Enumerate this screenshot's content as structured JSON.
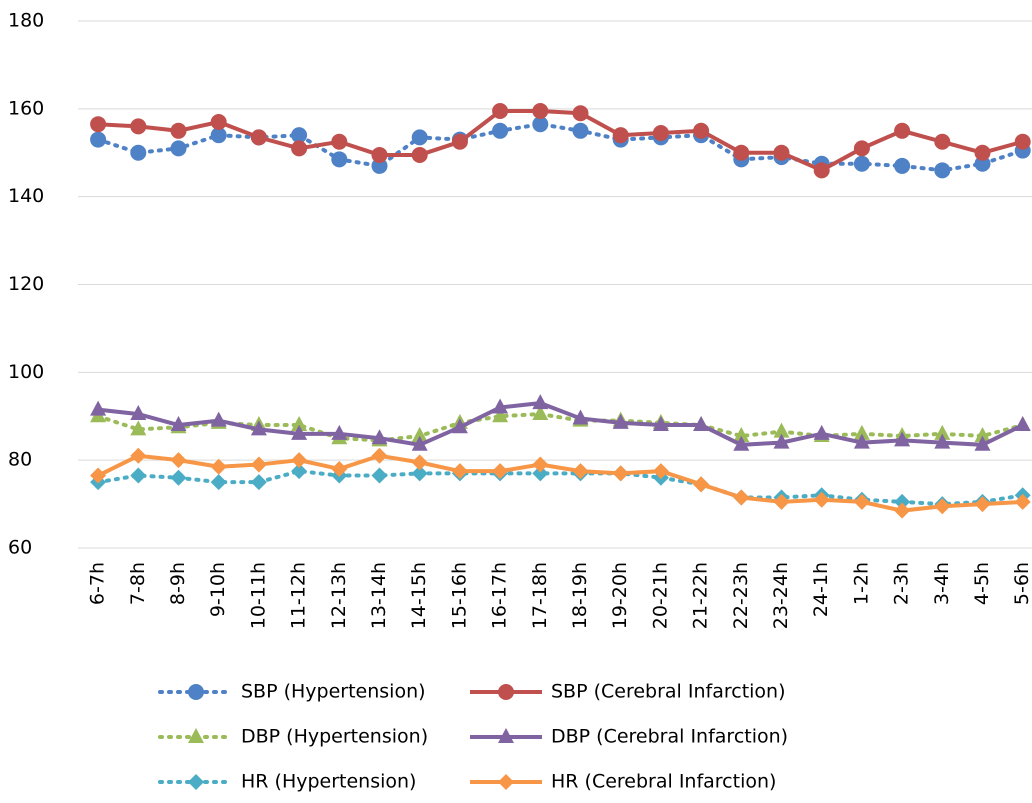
{
  "chart_data": {
    "type": "line",
    "categories": [
      "6-7h",
      "7-8h",
      "8-9h",
      "9-10h",
      "10-11h",
      "11-12h",
      "12-13h",
      "13-14h",
      "14-15h",
      "15-16h",
      "16-17h",
      "17-18h",
      "18-19h",
      "19-20h",
      "20-21h",
      "21-22h",
      "22-23h",
      "23-24h",
      "24-1h",
      "1-2h",
      "2-3h",
      "3-4h",
      "4-5h",
      "5-6h"
    ],
    "ylim": [
      60,
      180
    ],
    "yticks": [
      60,
      80,
      100,
      120,
      140,
      160,
      180
    ],
    "grid": true,
    "series": [
      {
        "name": "SBP (Hypertension)",
        "color": "#4f81c6",
        "style": "dotted",
        "marker": "circle",
        "values": [
          153,
          150,
          151,
          154,
          153.5,
          154,
          148.5,
          147,
          153.5,
          153,
          155,
          156.5,
          155,
          153,
          153.5,
          154,
          148.5,
          149,
          147.5,
          147.5,
          147,
          146,
          147.5,
          150.5
        ]
      },
      {
        "name": "SBP (Cerebral Infarction)",
        "color": "#c0504d",
        "style": "solid",
        "marker": "circle",
        "values": [
          156.5,
          156,
          155,
          157,
          153.5,
          151,
          152.5,
          149.5,
          149.5,
          152.5,
          159.5,
          159.5,
          159,
          154,
          154.5,
          155,
          150,
          150,
          146,
          151,
          155,
          152.5,
          150,
          152.5
        ]
      },
      {
        "name": "DBP (Hypertension)",
        "color": "#9bbb59",
        "style": "dotted",
        "marker": "triangle",
        "values": [
          90,
          87,
          87.5,
          88.5,
          88,
          88,
          85,
          84.5,
          85.5,
          88.5,
          90,
          90.5,
          89,
          89,
          88.5,
          88,
          85.5,
          86.5,
          85.5,
          86,
          85.5,
          86,
          85.5,
          88
        ]
      },
      {
        "name": "DBP (Cerebral Infarction)",
        "color": "#8064a2",
        "style": "solid",
        "marker": "triangle",
        "values": [
          91.5,
          90.5,
          88,
          89,
          87,
          86,
          86,
          85,
          83.5,
          87.5,
          92,
          93,
          89.5,
          88.5,
          88,
          88,
          83.5,
          84,
          86,
          84,
          84.5,
          84,
          83.5,
          88
        ]
      },
      {
        "name": "HR (Hypertension)",
        "color": "#4bacc6",
        "style": "dotted",
        "marker": "diamond",
        "values": [
          75,
          76.5,
          76,
          75,
          75,
          77.5,
          76.5,
          76.5,
          77,
          77,
          77,
          77,
          77,
          77,
          76,
          74.5,
          71.5,
          71.5,
          72,
          71,
          70.5,
          70,
          70.5,
          72
        ]
      },
      {
        "name": "HR (Cerebral Infarction)",
        "color": "#f79646",
        "style": "solid",
        "marker": "diamond",
        "values": [
          76.5,
          81,
          80,
          78.5,
          79,
          80,
          78,
          81,
          79.5,
          77.5,
          77.5,
          79,
          77.5,
          77,
          77.5,
          74.5,
          71.5,
          70.5,
          71,
          70.5,
          68.5,
          69.5,
          70,
          70.5
        ]
      }
    ]
  }
}
